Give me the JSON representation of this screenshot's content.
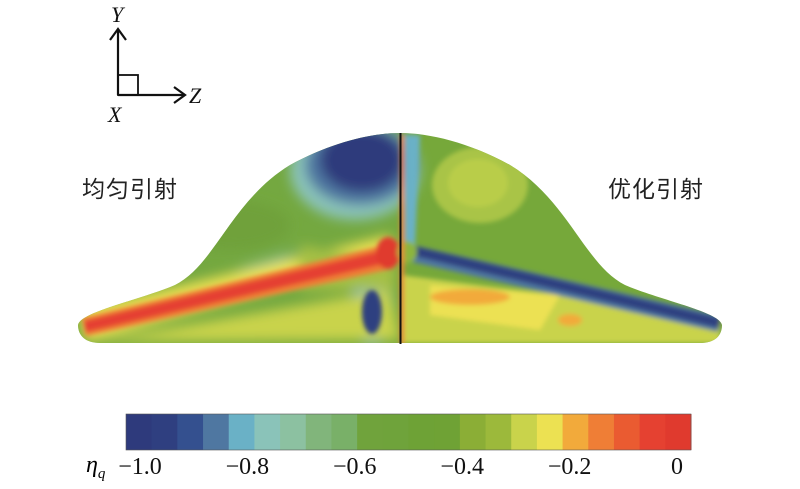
{
  "axes_triad": {
    "y_label": "Y",
    "z_label": "Z",
    "x_label": "X"
  },
  "panels": {
    "left_label": "均匀引射",
    "right_label": "优化引射"
  },
  "chart_data": {
    "type": "heatmap",
    "title": "",
    "colorbar": {
      "label": "η",
      "label_subscript": "q",
      "range": [
        -1.0,
        0
      ],
      "ticks": [
        -1.0,
        -0.8,
        -0.6,
        -0.4,
        -0.2,
        0
      ],
      "tick_labels": [
        "−1.0",
        "−0.8",
        "−0.6",
        "−0.4",
        "−0.2",
        "0"
      ],
      "colors": [
        "#2e3a7c",
        "#2f3f80",
        "#34508f",
        "#4f77a1",
        "#6ab1c6",
        "#8ac3b9",
        "#8cc1a1",
        "#81b57b",
        "#79b068",
        "#70a33c",
        "#6fa33b",
        "#6ea236",
        "#6fa235",
        "#8bae36",
        "#9cb93b",
        "#c9d34b",
        "#ece152",
        "#f2aa3b",
        "#ef7e36",
        "#ea5b31",
        "#e54131",
        "#e03a2e"
      ]
    }
  }
}
